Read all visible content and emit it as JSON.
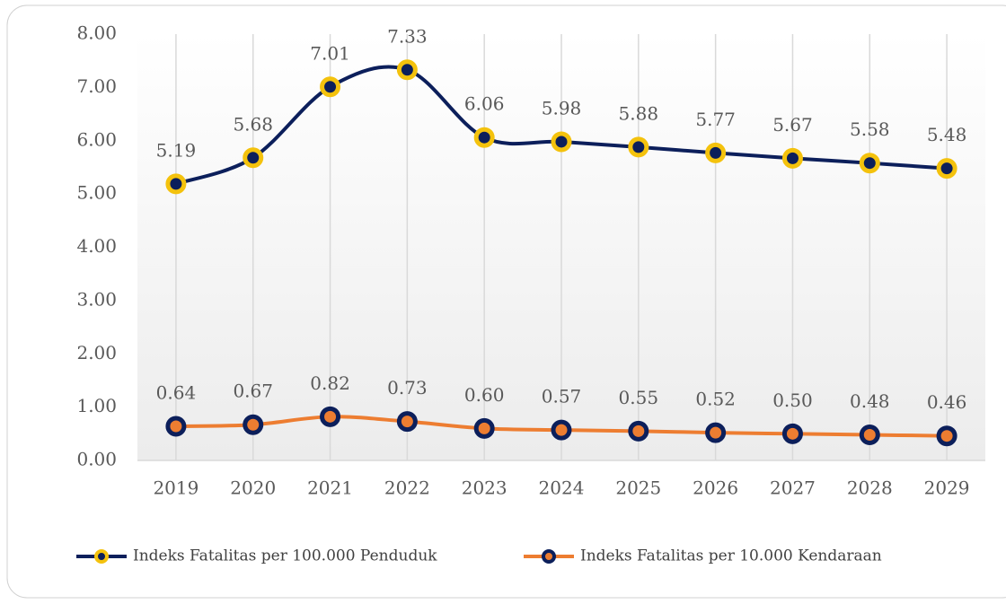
{
  "chart_data": {
    "type": "line",
    "categories": [
      "2019",
      "2020",
      "2021",
      "2022",
      "2023",
      "2024",
      "2025",
      "2026",
      "2027",
      "2028",
      "2029"
    ],
    "series": [
      {
        "name": "Indeks Fatalitas per 100.000 Penduduk",
        "color": "#0c1f5b",
        "marker_color": "#f4c20d",
        "values": [
          5.19,
          5.68,
          7.01,
          7.33,
          6.06,
          5.98,
          5.88,
          5.77,
          5.67,
          5.58,
          5.48
        ],
        "value_labels": [
          "5.19",
          "5.68",
          "7.01",
          "7.33",
          "6.06",
          "5.98",
          "5.88",
          "5.77",
          "5.67",
          "5.58",
          "5.48"
        ]
      },
      {
        "name": "Indeks Fatalitas per 10.000 Kendaraan",
        "color": "#ed7d31",
        "marker_color": "#0c1f5b",
        "values": [
          0.64,
          0.67,
          0.82,
          0.73,
          0.6,
          0.57,
          0.55,
          0.52,
          0.5,
          0.48,
          0.46
        ],
        "value_labels": [
          "0.64",
          "0.67",
          "0.82",
          "0.73",
          "0.60",
          "0.57",
          "0.55",
          "0.52",
          "0.50",
          "0.48",
          "0.46"
        ]
      }
    ],
    "ylim": [
      0,
      8
    ],
    "yticks": [
      {
        "value": 0,
        "label": "0.00"
      },
      {
        "value": 1,
        "label": "1.00"
      },
      {
        "value": 2,
        "label": "2.00"
      },
      {
        "value": 3,
        "label": "3.00"
      },
      {
        "value": 4,
        "label": "4.00"
      },
      {
        "value": 5,
        "label": "5.00"
      },
      {
        "value": 6,
        "label": "6.00"
      },
      {
        "value": 7,
        "label": "7.00"
      },
      {
        "value": 8,
        "label": "8.00"
      }
    ],
    "smooth": true,
    "legend": "bottom"
  }
}
